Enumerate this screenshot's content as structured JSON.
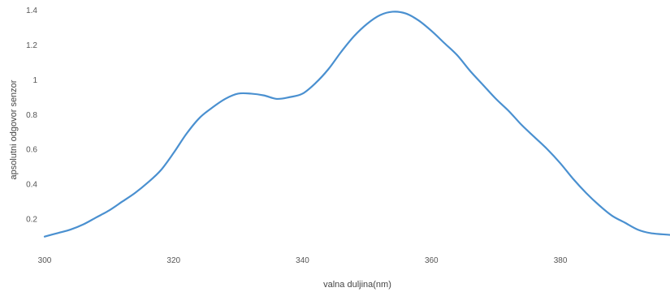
{
  "chart_data": {
    "type": "line",
    "title": "",
    "xlabel": "valna duljina(nm)",
    "ylabel": "apsolutni odgovor senzor",
    "xlim": [
      300,
      397
    ],
    "ylim": [
      0.08,
      1.42
    ],
    "x_ticks": [
      "300",
      "320",
      "340",
      "360",
      "380"
    ],
    "y_ticks": [
      "0.2",
      "0.4",
      "0.6",
      "0.8",
      "1",
      "1.2",
      "1.4"
    ],
    "grid": false,
    "legend": "none",
    "series": [
      {
        "color": "#4a90d0",
        "x": [
          300,
          302,
          304,
          306,
          308,
          310,
          312,
          314,
          316,
          318,
          320,
          322,
          324,
          326,
          328,
          330,
          332,
          334,
          336,
          338,
          340,
          342,
          344,
          346,
          348,
          350,
          352,
          354,
          356,
          358,
          360,
          362,
          364,
          366,
          368,
          370,
          372,
          374,
          376,
          378,
          380,
          382,
          384,
          386,
          388,
          390,
          392,
          394,
          397
        ],
        "y": [
          0.1,
          0.12,
          0.14,
          0.17,
          0.21,
          0.25,
          0.3,
          0.35,
          0.41,
          0.48,
          0.58,
          0.69,
          0.78,
          0.84,
          0.89,
          0.92,
          0.92,
          0.91,
          0.89,
          0.9,
          0.92,
          0.98,
          1.06,
          1.16,
          1.25,
          1.32,
          1.37,
          1.39,
          1.38,
          1.34,
          1.28,
          1.21,
          1.14,
          1.05,
          0.97,
          0.89,
          0.82,
          0.74,
          0.67,
          0.6,
          0.52,
          0.43,
          0.35,
          0.28,
          0.22,
          0.18,
          0.14,
          0.12,
          0.11
        ]
      }
    ]
  }
}
